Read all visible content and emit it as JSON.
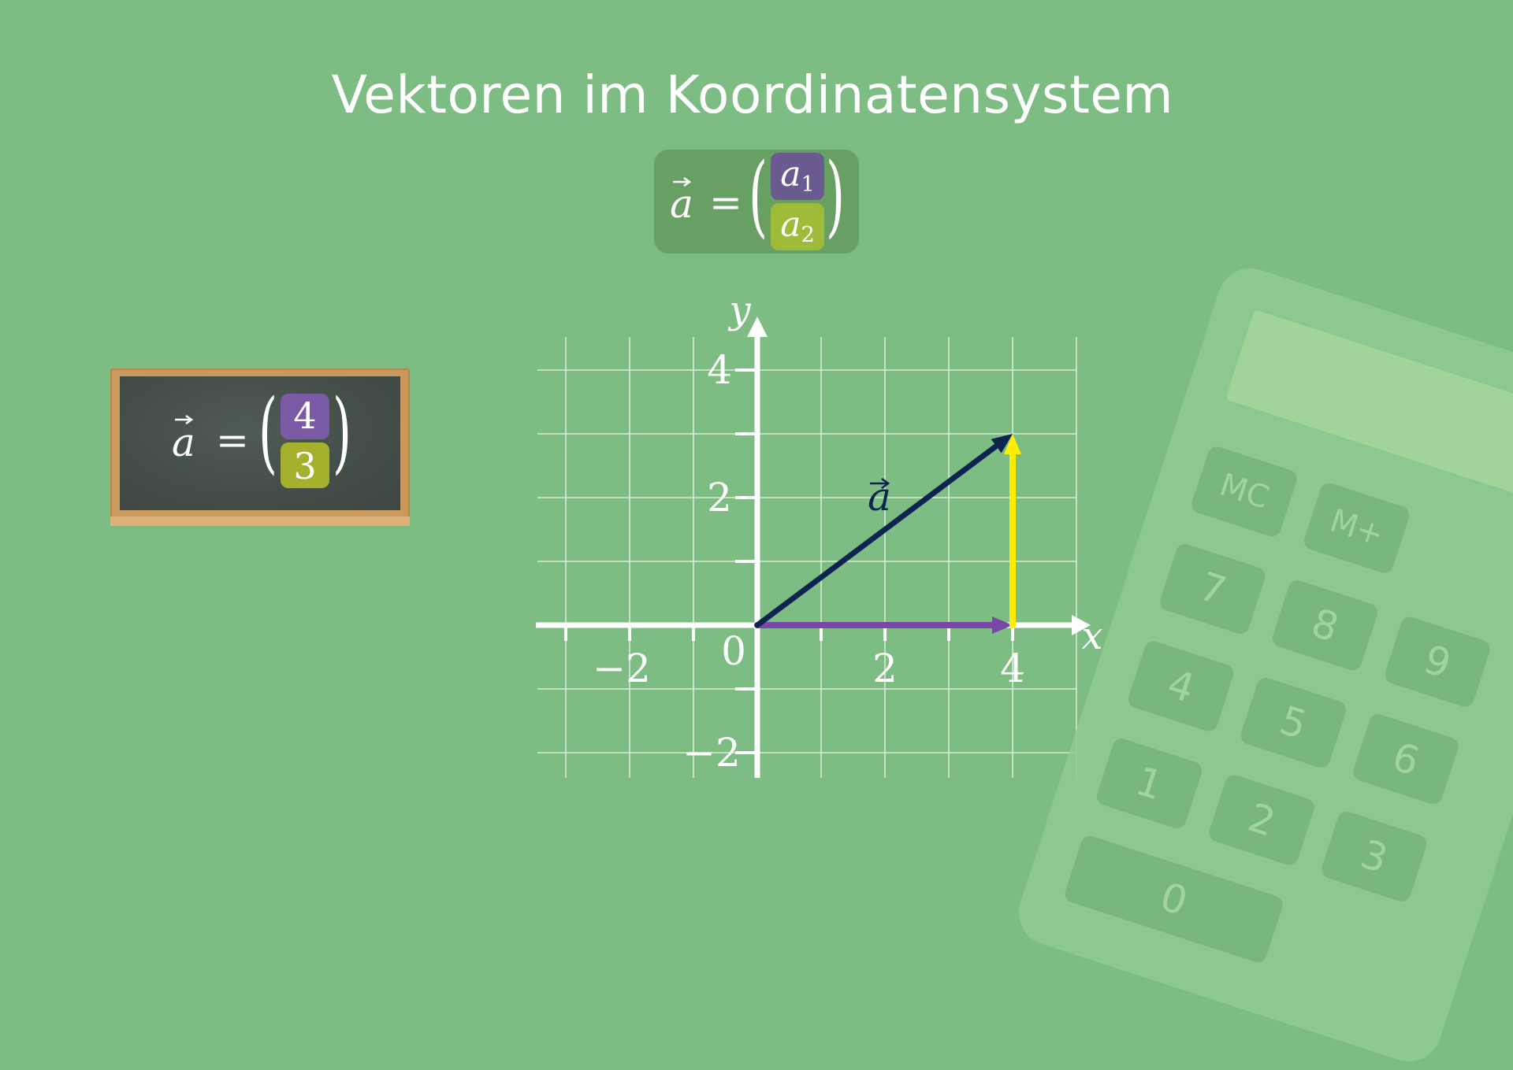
{
  "title": "Vektoren im Koordinatensystem",
  "general_formula": {
    "vector_name": "a",
    "equals": "=",
    "component1_var": "a",
    "component1_sub": "1",
    "component2_var": "a",
    "component2_sub": "2",
    "component1_color": "#6a5a8f",
    "component2_color": "#9fbb3a"
  },
  "example": {
    "vector_name": "a",
    "equals": "=",
    "x_value": "4",
    "y_value": "3",
    "x_color": "#7a5aa5",
    "y_color": "#a5b12c"
  },
  "coordinate_system": {
    "x_axis_label": "x",
    "y_axis_label": "y",
    "origin_label": "0",
    "x_tick_labels": [
      "−2",
      "2",
      "4"
    ],
    "y_tick_labels": [
      "4",
      "2",
      "−2"
    ],
    "x_range": [
      -3.5,
      5
    ],
    "y_range": [
      -2.5,
      4.5
    ],
    "grid": true,
    "vector_label": "a",
    "vector": {
      "from": [
        0,
        0
      ],
      "to": [
        4,
        3
      ],
      "color": "#0f2350"
    },
    "x_component": {
      "from": [
        0,
        0
      ],
      "to": [
        4,
        0
      ],
      "color": "#7a47a8"
    },
    "y_component": {
      "from": [
        4,
        0
      ],
      "to": [
        4,
        3
      ],
      "color": "#ffee00"
    }
  },
  "calculator": {
    "keys": [
      "MC",
      "M+",
      "7",
      "8",
      "9",
      "4",
      "5",
      "6",
      "1",
      "2",
      "3",
      "0"
    ]
  }
}
